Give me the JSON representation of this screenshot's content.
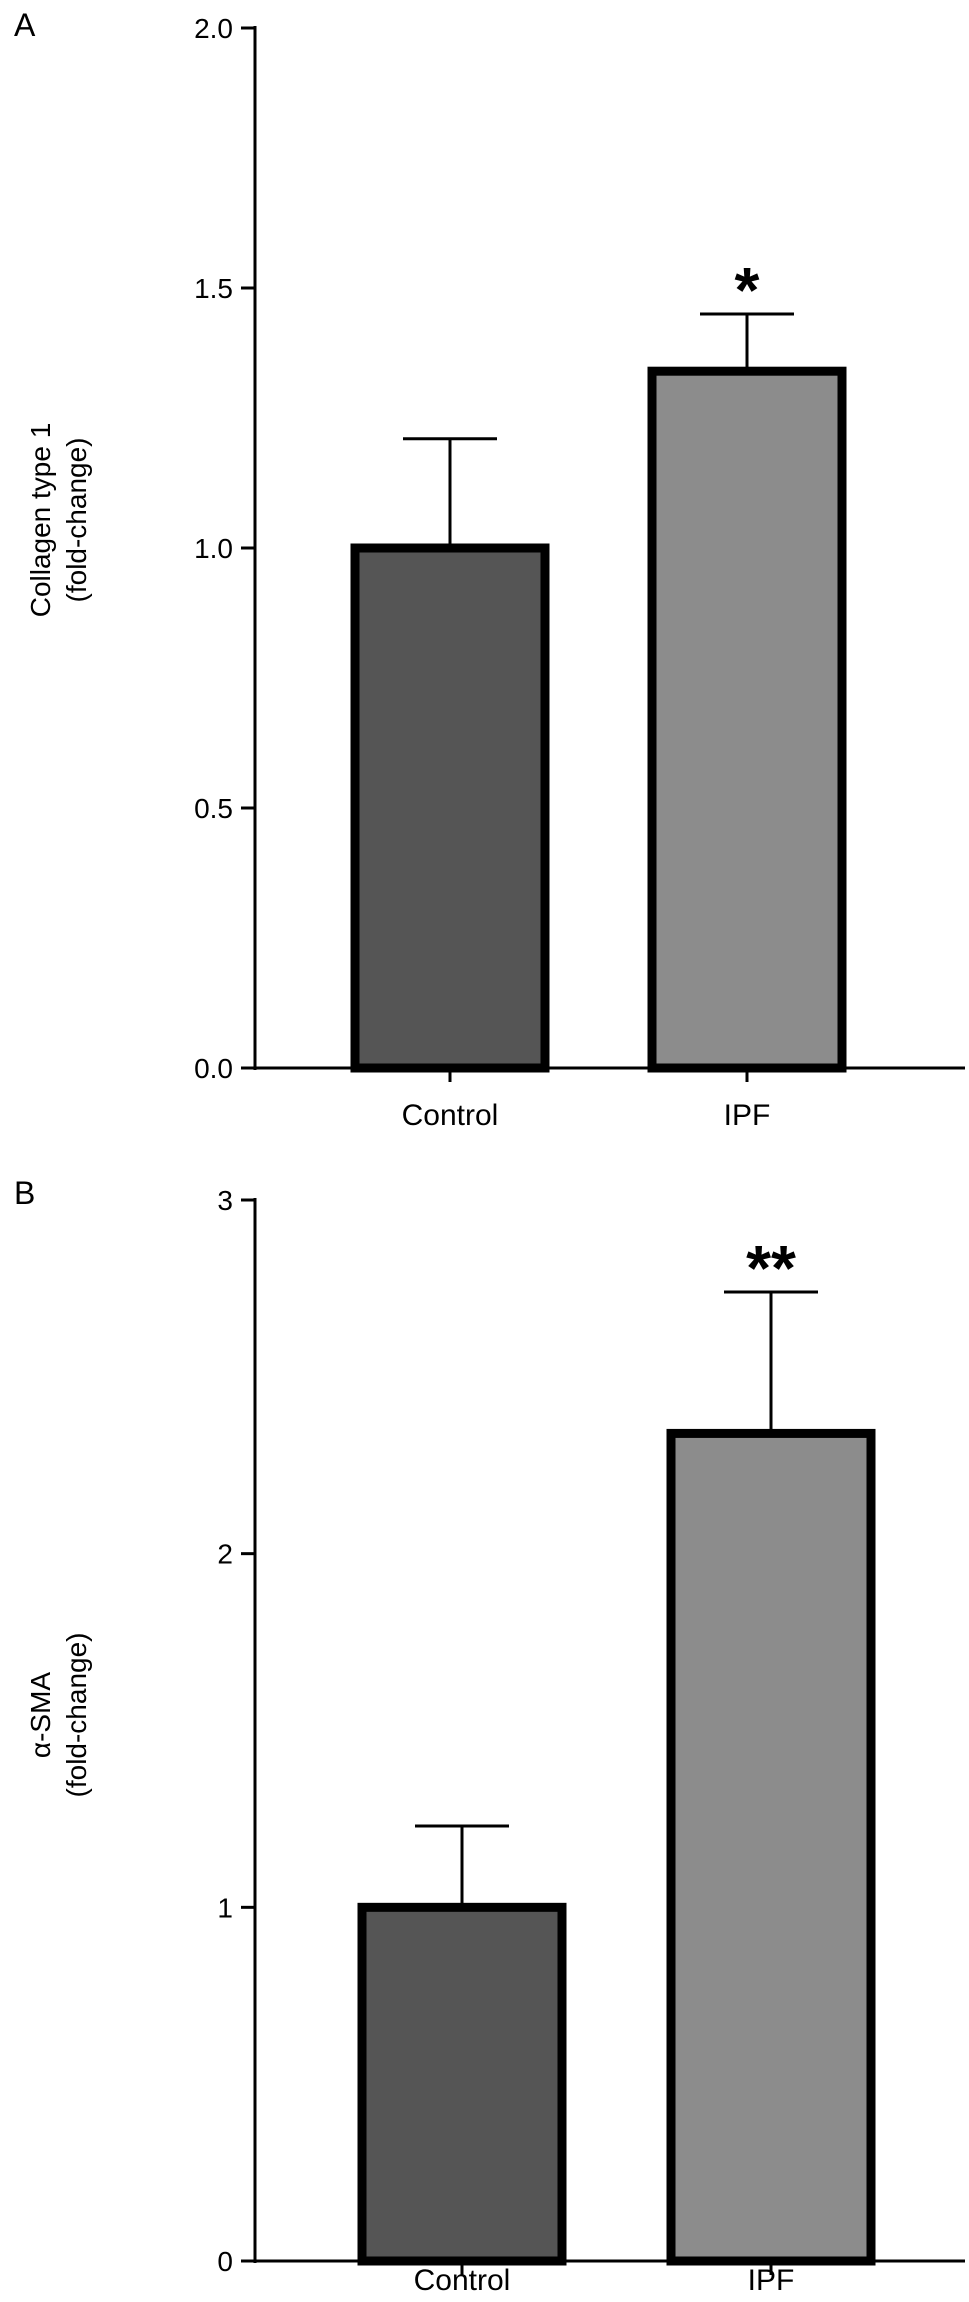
{
  "chart_data": [
    {
      "panel_label": "A",
      "type": "bar",
      "categories": [
        "Control",
        "IPF"
      ],
      "values": [
        1.0,
        1.34
      ],
      "error_upper": [
        0.21,
        0.11
      ],
      "significance": [
        "",
        "*"
      ],
      "ylabel_lines": [
        "Collagen type 1",
        "(fold-change)"
      ],
      "ylim": [
        0,
        2.0
      ],
      "yticks": [
        0.0,
        0.5,
        1.0,
        1.5,
        2.0
      ],
      "ytick_labels": [
        "0.0",
        "0.5",
        "1.0",
        "1.5",
        "2.0"
      ],
      "bar_colors": [
        "#555555",
        "#8c8c8c"
      ],
      "grid": false
    },
    {
      "panel_label": "B",
      "type": "bar",
      "categories": [
        "Control",
        "IPF"
      ],
      "values": [
        1.0,
        2.34
      ],
      "error_upper": [
        0.23,
        0.4
      ],
      "significance": [
        "",
        "**"
      ],
      "ylabel_lines": [
        "α-SMA",
        "(fold-change)"
      ],
      "ylim": [
        0,
        3
      ],
      "yticks": [
        0,
        1,
        2,
        3
      ],
      "ytick_labels": [
        "0",
        "1",
        "2",
        "3"
      ],
      "bar_colors": [
        "#555555",
        "#8c8c8c"
      ],
      "grid": false
    }
  ]
}
